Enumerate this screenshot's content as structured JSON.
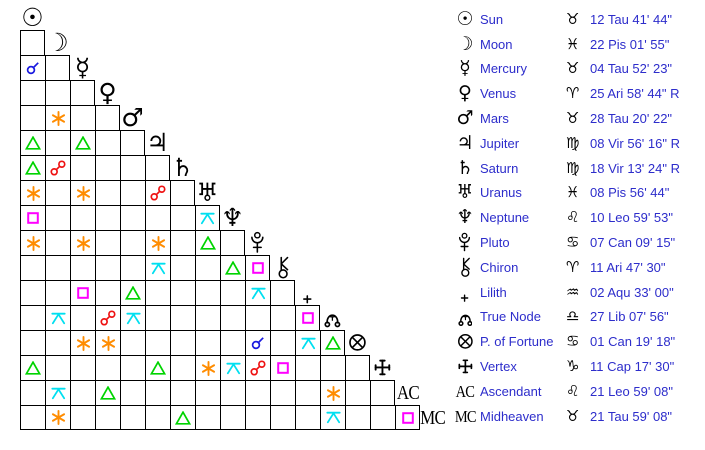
{
  "palette": {
    "grid_line": "#000000",
    "table_text": "#2d2dcb",
    "glyph_color": "#000000",
    "aspect_colors": {
      "conjunction": "#1a1adf",
      "sextile": "#ff8c00",
      "square": "#ff00ff",
      "trine": "#00d400",
      "opposition": "#ee1111",
      "quincunx": "#00dff0"
    }
  },
  "planets": [
    {
      "id": "sun",
      "name": "Sun",
      "glyph_kind": "unicode",
      "glyph": "☉",
      "glyph_icon": "sun-icon",
      "sign_id": "taurus",
      "sign_glyph": "♉",
      "position": "12 Tau 41' 44\""
    },
    {
      "id": "moon",
      "name": "Moon",
      "glyph_kind": "unicode",
      "glyph": "☽",
      "glyph_icon": "moon-icon",
      "sign_id": "pisces",
      "sign_glyph": "♓",
      "position": "22 Pis 01' 55\""
    },
    {
      "id": "mercury",
      "name": "Mercury",
      "glyph_kind": "unicode",
      "glyph": "☿",
      "glyph_icon": "mercury-icon",
      "sign_id": "taurus",
      "sign_glyph": "♉",
      "position": "04 Tau 52' 23\""
    },
    {
      "id": "venus",
      "name": "Venus",
      "glyph_kind": "unicode",
      "glyph": "♀",
      "glyph_icon": "venus-icon",
      "sign_id": "aries",
      "sign_glyph": "♈",
      "position": "25 Ari 58' 44\" R"
    },
    {
      "id": "mars",
      "name": "Mars",
      "glyph_kind": "unicode",
      "glyph": "♂",
      "glyph_icon": "mars-icon",
      "sign_id": "taurus",
      "sign_glyph": "♉",
      "position": "28 Tau 20' 22\""
    },
    {
      "id": "jupiter",
      "name": "Jupiter",
      "glyph_kind": "unicode",
      "glyph": "♃",
      "glyph_icon": "jupiter-icon",
      "sign_id": "virgo",
      "sign_glyph": "♍",
      "position": "08 Vir 56' 16\" R"
    },
    {
      "id": "saturn",
      "name": "Saturn",
      "glyph_kind": "unicode",
      "glyph": "♄",
      "glyph_icon": "saturn-icon",
      "sign_id": "virgo",
      "sign_glyph": "♍",
      "position": "18 Vir 13' 24\" R"
    },
    {
      "id": "uranus",
      "name": "Uranus",
      "glyph_kind": "unicode",
      "glyph": "♅",
      "glyph_icon": "uranus-icon",
      "sign_id": "pisces",
      "sign_glyph": "♓",
      "position": "08 Pis 56' 44\""
    },
    {
      "id": "neptune",
      "name": "Neptune",
      "glyph_kind": "unicode",
      "glyph": "♆",
      "glyph_icon": "neptune-icon",
      "sign_id": "leo",
      "sign_glyph": "♌",
      "position": "10 Leo 59' 53\""
    },
    {
      "id": "pluto",
      "name": "Pluto",
      "glyph_kind": "svg",
      "glyph": "pluto",
      "glyph_icon": "pluto-icon",
      "sign_id": "cancer",
      "sign_glyph": "♋",
      "position": "07 Can 09' 15\""
    },
    {
      "id": "chiron",
      "name": "Chiron",
      "glyph_kind": "svg",
      "glyph": "chiron",
      "glyph_icon": "chiron-icon",
      "sign_id": "aries",
      "sign_glyph": "♈",
      "position": "11 Ari 47' 30\""
    },
    {
      "id": "lilith",
      "name": "Lilith",
      "glyph_kind": "svg",
      "glyph": "lilith",
      "glyph_icon": "lilith-icon",
      "sign_id": "aquarius",
      "sign_glyph": "♒",
      "position": "02 Aqu 33' 00\""
    },
    {
      "id": "truenode",
      "name": "True Node",
      "glyph_kind": "svg",
      "glyph": "truenode",
      "glyph_icon": "true-node-icon",
      "sign_id": "libra",
      "sign_glyph": "♎",
      "position": "27 Lib 07' 56\""
    },
    {
      "id": "pfortune",
      "name": "P. of Fortune",
      "glyph_kind": "svg",
      "glyph": "pfortune",
      "glyph_icon": "part-of-fortune-icon",
      "sign_id": "cancer",
      "sign_glyph": "♋",
      "position": "01 Can 19' 18\""
    },
    {
      "id": "vertex",
      "name": "Vertex",
      "glyph_kind": "svg",
      "glyph": "vertex",
      "glyph_icon": "vertex-icon",
      "sign_id": "capricorn",
      "sign_glyph": "♑",
      "position": "11 Cap 17' 30\""
    },
    {
      "id": "ascendant",
      "name": "Ascendant",
      "glyph_kind": "text",
      "glyph": "AC",
      "glyph_icon": "ascendant-icon",
      "sign_id": "leo",
      "sign_glyph": "♌",
      "position": "21 Leo 59' 08\""
    },
    {
      "id": "midheaven",
      "name": "Midheaven",
      "glyph_kind": "text",
      "glyph": "MC",
      "glyph_icon": "midheaven-icon",
      "sign_id": "taurus",
      "sign_glyph": "♉",
      "position": "21 Tau 59' 08\""
    }
  ],
  "aspects": [
    {
      "r": 2,
      "c": 0,
      "a": "conjunction"
    },
    {
      "r": 4,
      "c": 1,
      "a": "sextile"
    },
    {
      "r": 5,
      "c": 0,
      "a": "trine"
    },
    {
      "r": 5,
      "c": 2,
      "a": "trine"
    },
    {
      "r": 6,
      "c": 0,
      "a": "trine"
    },
    {
      "r": 6,
      "c": 1,
      "a": "opposition"
    },
    {
      "r": 7,
      "c": 0,
      "a": "sextile"
    },
    {
      "r": 7,
      "c": 2,
      "a": "sextile"
    },
    {
      "r": 7,
      "c": 5,
      "a": "opposition"
    },
    {
      "r": 8,
      "c": 0,
      "a": "square"
    },
    {
      "r": 8,
      "c": 7,
      "a": "quincunx"
    },
    {
      "r": 9,
      "c": 0,
      "a": "sextile"
    },
    {
      "r": 9,
      "c": 2,
      "a": "sextile"
    },
    {
      "r": 9,
      "c": 5,
      "a": "sextile"
    },
    {
      "r": 9,
      "c": 7,
      "a": "trine"
    },
    {
      "r": 10,
      "c": 5,
      "a": "quincunx"
    },
    {
      "r": 10,
      "c": 8,
      "a": "trine"
    },
    {
      "r": 10,
      "c": 9,
      "a": "square"
    },
    {
      "r": 11,
      "c": 2,
      "a": "square"
    },
    {
      "r": 11,
      "c": 4,
      "a": "trine"
    },
    {
      "r": 11,
      "c": 9,
      "a": "quincunx"
    },
    {
      "r": 12,
      "c": 1,
      "a": "quincunx"
    },
    {
      "r": 12,
      "c": 3,
      "a": "opposition"
    },
    {
      "r": 12,
      "c": 4,
      "a": "quincunx"
    },
    {
      "r": 12,
      "c": 11,
      "a": "square"
    },
    {
      "r": 13,
      "c": 2,
      "a": "sextile"
    },
    {
      "r": 13,
      "c": 3,
      "a": "sextile"
    },
    {
      "r": 13,
      "c": 9,
      "a": "conjunction"
    },
    {
      "r": 13,
      "c": 11,
      "a": "quincunx"
    },
    {
      "r": 13,
      "c": 12,
      "a": "trine"
    },
    {
      "r": 14,
      "c": 0,
      "a": "trine"
    },
    {
      "r": 14,
      "c": 5,
      "a": "trine"
    },
    {
      "r": 14,
      "c": 7,
      "a": "sextile"
    },
    {
      "r": 14,
      "c": 8,
      "a": "quincunx"
    },
    {
      "r": 14,
      "c": 9,
      "a": "opposition"
    },
    {
      "r": 14,
      "c": 10,
      "a": "square"
    },
    {
      "r": 15,
      "c": 1,
      "a": "quincunx"
    },
    {
      "r": 15,
      "c": 3,
      "a": "trine"
    },
    {
      "r": 15,
      "c": 12,
      "a": "sextile"
    },
    {
      "r": 16,
      "c": 1,
      "a": "sextile"
    },
    {
      "r": 16,
      "c": 6,
      "a": "trine"
    },
    {
      "r": 16,
      "c": 12,
      "a": "quincunx"
    },
    {
      "r": 16,
      "c": 15,
      "a": "square"
    }
  ]
}
